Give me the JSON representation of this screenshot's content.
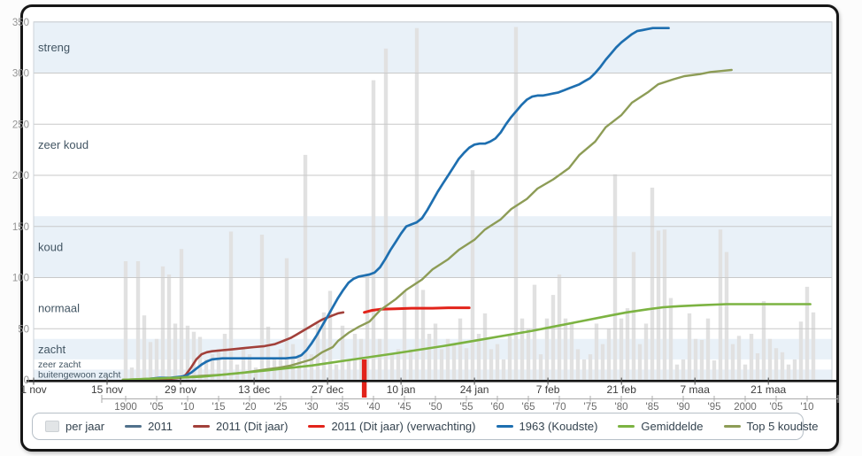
{
  "legend": {
    "items": [
      {
        "id": "per-jaar",
        "label": "per jaar",
        "type": "box",
        "color": "#e2e5e7"
      },
      {
        "id": "2011",
        "label": "2011",
        "type": "line",
        "color": "#51718c"
      },
      {
        "id": "2011-dit-jaar",
        "label": "2011 (Dit jaar)",
        "type": "line",
        "color": "#a2403a"
      },
      {
        "id": "2011-verwachting",
        "label": "2011 (Dit jaar) (verwachting)",
        "type": "line",
        "color": "#e2231a"
      },
      {
        "id": "1963-koudste",
        "label": "1963 (Koudste)",
        "type": "line",
        "color": "#1e6fb0"
      },
      {
        "id": "gemiddelde",
        "label": "Gemiddelde",
        "type": "line",
        "color": "#7cb342"
      },
      {
        "id": "top-5-koudste",
        "label": "Top 5 koudste",
        "type": "line",
        "color": "#8d9c56"
      }
    ]
  },
  "chart_data": {
    "type": "line",
    "title": "",
    "ylim": [
      0,
      350
    ],
    "y_ticks": [
      0,
      50,
      100,
      150,
      200,
      250,
      300,
      350
    ],
    "y_tick_labels": [
      "0",
      "50",
      "100",
      "150",
      "200",
      "250",
      "300",
      "350"
    ],
    "grid": true,
    "legend_position": "bottom",
    "colors": {
      "band": "#e9f1f8",
      "bar": "#e1e1e1",
      "forecast": "#e2231a"
    },
    "x_axis_dates": {
      "labels": [
        "1 nov",
        "15 nov",
        "29 nov",
        "13 dec",
        "27 dec",
        "10 jan",
        "24 jan",
        "7 feb",
        "21 feb",
        "7 maa",
        "21 maa"
      ],
      "tick_days": [
        0,
        14,
        28,
        42,
        56,
        70,
        84,
        98,
        112,
        126,
        140
      ]
    },
    "x_axis_years": {
      "start": 1900,
      "end": 2010,
      "tick_step": 5,
      "labels": [
        "1900",
        "'05",
        "'10",
        "'15",
        "'20",
        "'25",
        "'30",
        "'35",
        "'40",
        "'45",
        "'50",
        "'55",
        "'60",
        "'65",
        "'70",
        "'75",
        "'80",
        "'85",
        "'90",
        "'95",
        "2000",
        "'05",
        "'10"
      ]
    },
    "bands": [
      {
        "label": "streng",
        "from": 300,
        "to": 350,
        "shaded": true,
        "small": false
      },
      {
        "label": "zeer koud",
        "from": 160,
        "to": 300,
        "shaded": false,
        "small": false
      },
      {
        "label": "koud",
        "from": 100,
        "to": 160,
        "shaded": true,
        "small": false
      },
      {
        "label": "normaal",
        "from": 40,
        "to": 100,
        "shaded": false,
        "small": false
      },
      {
        "label": "zacht",
        "from": 20,
        "to": 40,
        "shaded": true,
        "small": false
      },
      {
        "label": "zeer zacht",
        "from": 10,
        "to": 20,
        "shaded": false,
        "small": true
      },
      {
        "label": "buitengewoon zacht",
        "from": 0,
        "to": 10,
        "shaded": true,
        "small": true
      }
    ],
    "today_marker_day": 63,
    "bars_per_year": {
      "start_year": 1900,
      "values": [
        116,
        12,
        116,
        63,
        37,
        40,
        111,
        103,
        55,
        128,
        53,
        47,
        42,
        20,
        25,
        30,
        45,
        145,
        15,
        30,
        25,
        12,
        142,
        52,
        20,
        30,
        119,
        35,
        25,
        220,
        25,
        55,
        66,
        87,
        15,
        53,
        20,
        45,
        40,
        104,
        293,
        40,
        324,
        25,
        30,
        87,
        30,
        344,
        88,
        45,
        55,
        30,
        40,
        35,
        60,
        31,
        205,
        45,
        65,
        30,
        35,
        20,
        45,
        345,
        60,
        50,
        93,
        25,
        60,
        83,
        103,
        60,
        55,
        30,
        20,
        25,
        55,
        35,
        50,
        201,
        60,
        70,
        125,
        35,
        55,
        188,
        146,
        147,
        80,
        15,
        20,
        65,
        40,
        39,
        60,
        19,
        147,
        125,
        35,
        43,
        15,
        45,
        26,
        77,
        40,
        31,
        27,
        15,
        20,
        57,
        91,
        66
      ]
    },
    "series": [
      {
        "id": "2011",
        "name": "2011",
        "color": "#51718c",
        "width": 1.8,
        "points": [
          [
            17,
            0
          ],
          [
            24,
            0
          ],
          [
            26,
            1
          ],
          [
            28,
            2
          ],
          [
            29,
            5
          ],
          [
            30,
            12
          ],
          [
            31,
            20
          ],
          [
            32,
            25
          ],
          [
            33,
            27
          ],
          [
            34,
            28
          ],
          [
            36,
            29
          ],
          [
            38,
            30
          ],
          [
            40,
            31
          ],
          [
            42,
            32
          ],
          [
            44,
            33
          ],
          [
            46,
            35
          ],
          [
            47,
            37
          ],
          [
            48,
            39
          ],
          [
            49,
            41
          ],
          [
            50,
            44
          ],
          [
            51,
            47
          ],
          [
            52,
            50
          ],
          [
            53,
            53
          ],
          [
            54,
            56
          ],
          [
            55,
            59
          ],
          [
            56,
            61
          ],
          [
            57,
            63
          ],
          [
            58,
            65
          ],
          [
            59,
            66
          ]
        ]
      },
      {
        "id": "2011-dit-jaar",
        "name": "2011 (Dit jaar)",
        "color": "#a2403a",
        "width": 2.6,
        "points": [
          [
            17,
            0
          ],
          [
            24,
            0
          ],
          [
            26,
            1
          ],
          [
            28,
            2
          ],
          [
            29,
            5
          ],
          [
            30,
            12
          ],
          [
            31,
            20
          ],
          [
            32,
            25
          ],
          [
            33,
            27
          ],
          [
            34,
            28
          ],
          [
            36,
            29
          ],
          [
            38,
            30
          ],
          [
            40,
            31
          ],
          [
            42,
            32
          ],
          [
            44,
            33
          ],
          [
            46,
            35
          ],
          [
            47,
            37
          ],
          [
            48,
            39
          ],
          [
            49,
            41
          ],
          [
            50,
            44
          ],
          [
            51,
            47
          ],
          [
            52,
            50
          ],
          [
            53,
            53
          ],
          [
            54,
            56
          ],
          [
            55,
            59
          ],
          [
            56,
            61
          ],
          [
            57,
            63
          ],
          [
            58,
            65
          ],
          [
            59,
            66
          ]
        ]
      },
      {
        "id": "2011-verwachting",
        "name": "2011 (Dit jaar) (verwachting)",
        "color": "#e2231a",
        "width": 3,
        "points": [
          [
            63,
            66
          ],
          [
            64.5,
            68
          ],
          [
            66,
            69
          ],
          [
            69,
            69.5
          ],
          [
            72,
            70
          ],
          [
            76,
            70
          ],
          [
            79,
            70.5
          ],
          [
            83,
            70.5
          ]
        ]
      },
      {
        "id": "1963-koudste",
        "name": "1963 (Koudste)",
        "color": "#1e6fb0",
        "width": 2.7,
        "points": [
          [
            20,
            0
          ],
          [
            22,
            1
          ],
          [
            24,
            2
          ],
          [
            26,
            2
          ],
          [
            28,
            3
          ],
          [
            29,
            4
          ],
          [
            30,
            7
          ],
          [
            31,
            11
          ],
          [
            32,
            15
          ],
          [
            33,
            18
          ],
          [
            34,
            20
          ],
          [
            36,
            21
          ],
          [
            40,
            21
          ],
          [
            44,
            21
          ],
          [
            48,
            21
          ],
          [
            50,
            22
          ],
          [
            51,
            24
          ],
          [
            52,
            29
          ],
          [
            53,
            36
          ],
          [
            54,
            44
          ],
          [
            55,
            53
          ],
          [
            56,
            62
          ],
          [
            57,
            71
          ],
          [
            58,
            80
          ],
          [
            59,
            88
          ],
          [
            60,
            95
          ],
          [
            61,
            99
          ],
          [
            62,
            101
          ],
          [
            63,
            102
          ],
          [
            64,
            103
          ],
          [
            65,
            105
          ],
          [
            66,
            110
          ],
          [
            67,
            118
          ],
          [
            68,
            127
          ],
          [
            69,
            135
          ],
          [
            70,
            143
          ],
          [
            71,
            150
          ],
          [
            72,
            152
          ],
          [
            73,
            154
          ],
          [
            74,
            158
          ],
          [
            75,
            166
          ],
          [
            76,
            175
          ],
          [
            77,
            184
          ],
          [
            78,
            192
          ],
          [
            79,
            200
          ],
          [
            80,
            208
          ],
          [
            81,
            216
          ],
          [
            82,
            222
          ],
          [
            83,
            227
          ],
          [
            84,
            230
          ],
          [
            85,
            231
          ],
          [
            86,
            231
          ],
          [
            87,
            233
          ],
          [
            88,
            236
          ],
          [
            89,
            242
          ],
          [
            90,
            250
          ],
          [
            91,
            257
          ],
          [
            92,
            263
          ],
          [
            93,
            269
          ],
          [
            94,
            274
          ],
          [
            95,
            277
          ],
          [
            96,
            278
          ],
          [
            97,
            278
          ],
          [
            98,
            279
          ],
          [
            99,
            280
          ],
          [
            100,
            281
          ],
          [
            101,
            283
          ],
          [
            102,
            285
          ],
          [
            103,
            287
          ],
          [
            104,
            289
          ],
          [
            105,
            292
          ],
          [
            106,
            295
          ],
          [
            107,
            300
          ],
          [
            108,
            306
          ],
          [
            109,
            313
          ],
          [
            110,
            319
          ],
          [
            111,
            325
          ],
          [
            112,
            330
          ],
          [
            113,
            334
          ],
          [
            114,
            338
          ],
          [
            115,
            341
          ],
          [
            116,
            342
          ],
          [
            117,
            343
          ],
          [
            118,
            344
          ],
          [
            120,
            344
          ],
          [
            121,
            344
          ]
        ]
      },
      {
        "id": "top-5-koudste",
        "name": "Top 5 koudste",
        "color": "#8d9c56",
        "width": 2.4,
        "points": [
          [
            17,
            0
          ],
          [
            22,
            1
          ],
          [
            27,
            2
          ],
          [
            32,
            4
          ],
          [
            36,
            5
          ],
          [
            40,
            7
          ],
          [
            44,
            10
          ],
          [
            47,
            12
          ],
          [
            49,
            14
          ],
          [
            51,
            17
          ],
          [
            53,
            20
          ],
          [
            55,
            27
          ],
          [
            57,
            32
          ],
          [
            58,
            38
          ],
          [
            60,
            46
          ],
          [
            62,
            52
          ],
          [
            64,
            57
          ],
          [
            66,
            68
          ],
          [
            69,
            79
          ],
          [
            71,
            88
          ],
          [
            74,
            98
          ],
          [
            76,
            108
          ],
          [
            79,
            118
          ],
          [
            81,
            127
          ],
          [
            84,
            137
          ],
          [
            86,
            147
          ],
          [
            89,
            157
          ],
          [
            91,
            167
          ],
          [
            94,
            177
          ],
          [
            96,
            187
          ],
          [
            99,
            196
          ],
          [
            102,
            207
          ],
          [
            104,
            220
          ],
          [
            107,
            233
          ],
          [
            109,
            247
          ],
          [
            112,
            259
          ],
          [
            114,
            271
          ],
          [
            117,
            281
          ],
          [
            119,
            289
          ],
          [
            122,
            294
          ],
          [
            124,
            297
          ],
          [
            127,
            299
          ],
          [
            129,
            301
          ],
          [
            131,
            302
          ],
          [
            133,
            303
          ]
        ]
      },
      {
        "id": "gemiddelde",
        "name": "Gemiddelde",
        "color": "#7cb342",
        "width": 2.6,
        "points": [
          [
            17,
            0
          ],
          [
            22,
            1
          ],
          [
            27,
            2
          ],
          [
            32,
            3
          ],
          [
            36,
            5
          ],
          [
            44,
            9
          ],
          [
            53,
            14
          ],
          [
            61,
            20
          ],
          [
            69,
            26
          ],
          [
            78,
            33
          ],
          [
            86,
            40
          ],
          [
            95,
            48
          ],
          [
            100,
            53
          ],
          [
            105,
            58
          ],
          [
            110,
            63
          ],
          [
            113,
            66
          ],
          [
            117,
            69
          ],
          [
            120,
            71
          ],
          [
            123,
            72
          ],
          [
            127,
            73
          ],
          [
            132,
            74
          ],
          [
            139,
            74
          ],
          [
            144,
            74
          ],
          [
            148,
            74
          ]
        ]
      }
    ]
  }
}
